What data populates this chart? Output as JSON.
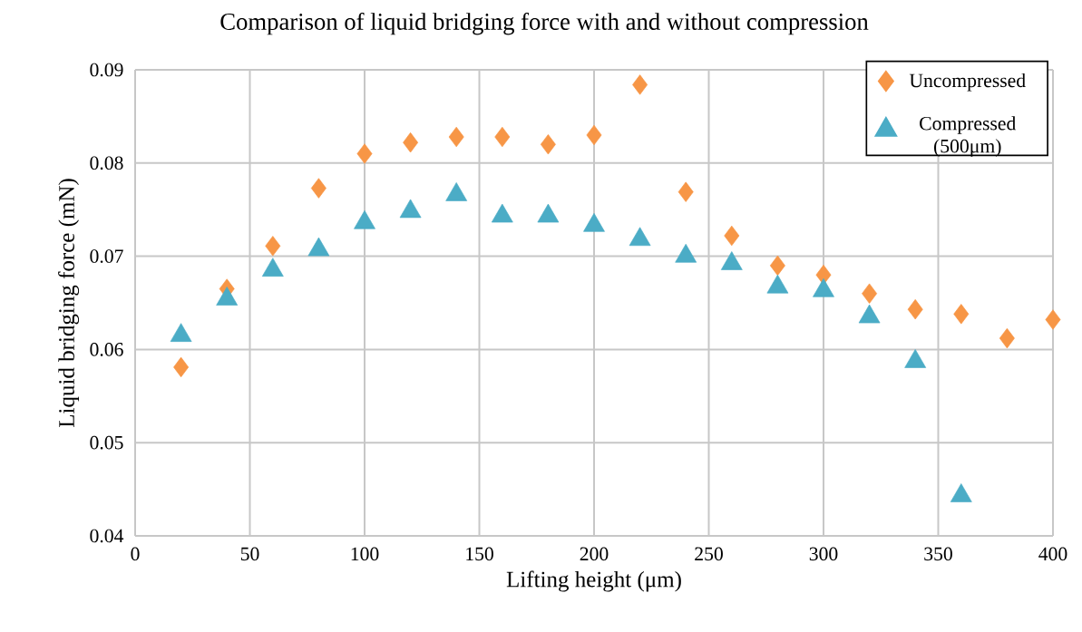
{
  "chart_data": {
    "type": "scatter",
    "title": "Comparison of liquid bridging force with and without compression",
    "xlabel": "Lifting height (μm)",
    "ylabel": "Liquid bridging force (mN)",
    "x": [
      20,
      40,
      60,
      80,
      100,
      120,
      140,
      160,
      180,
      200,
      220,
      240,
      260,
      280,
      300,
      320,
      340,
      360,
      380,
      400
    ],
    "series": [
      {
        "name": "Uncompressed",
        "color": "#f79646",
        "marker": "diamond",
        "values": [
          0.0581,
          0.0665,
          0.0711,
          0.0773,
          0.081,
          0.0822,
          0.0828,
          0.0828,
          0.082,
          0.083,
          0.0884,
          0.0769,
          0.0722,
          0.069,
          0.068,
          0.066,
          0.0643,
          0.0638,
          0.0612,
          0.0632
        ]
      },
      {
        "name": "Compressed (500μm)",
        "color": "#4bacc6",
        "marker": "triangle",
        "values": [
          0.0615,
          0.0654,
          0.0685,
          0.0707,
          0.0736,
          0.0748,
          0.0766,
          0.0743,
          0.0743,
          0.0733,
          0.0718,
          0.07,
          0.0692,
          0.0667,
          0.0663,
          0.0635,
          0.0587,
          0.0443,
          null,
          null
        ]
      }
    ],
    "xlim": [
      0,
      400
    ],
    "ylim": [
      0.04,
      0.09
    ],
    "xticks": [
      0,
      50,
      100,
      150,
      200,
      250,
      300,
      350,
      400
    ],
    "yticks": [
      0.04,
      0.05,
      0.06,
      0.07,
      0.08,
      0.09
    ],
    "grid": true,
    "legend": "top right"
  }
}
